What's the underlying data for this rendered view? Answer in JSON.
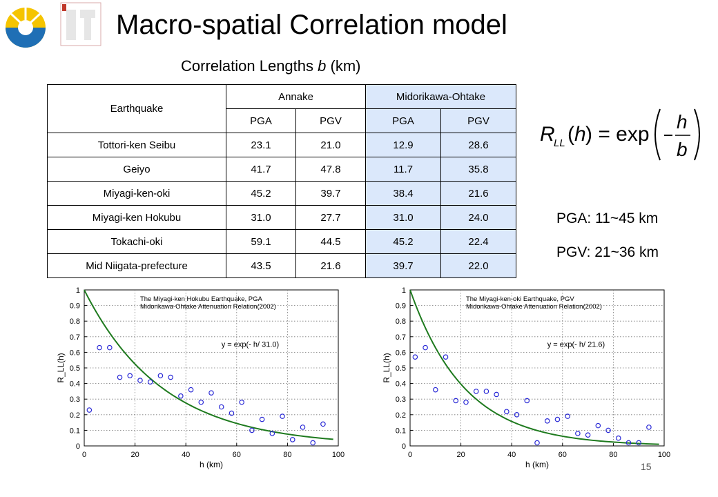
{
  "title": "Macro-spatial Correlation model",
  "table": {
    "caption_prefix": "Correlation Lengths ",
    "caption_var": "b",
    "caption_suffix": " (km)",
    "header_earthquake": "Earthquake",
    "header_group1": "Annake",
    "header_group2": "Midorikawa-Ohtake",
    "sub_headers": [
      "PGA",
      "PGV",
      "PGA",
      "PGV"
    ],
    "rows": [
      {
        "name": "Tottori-ken Seibu",
        "values": [
          "23.1",
          "21.0",
          "12.9",
          "28.6"
        ]
      },
      {
        "name": "Geiyo",
        "values": [
          "41.7",
          "47.8",
          "11.7",
          "35.8"
        ]
      },
      {
        "name": "Miyagi-ken-oki",
        "values": [
          "45.2",
          "39.7",
          "38.4",
          "21.6"
        ]
      },
      {
        "name": "Miyagi-ken Hokubu",
        "values": [
          "31.0",
          "27.7",
          "31.0",
          "24.0"
        ]
      },
      {
        "name": "Tokachi-oki",
        "values": [
          "59.1",
          "44.5",
          "45.2",
          "22.4"
        ]
      },
      {
        "name": "Mid Niigata-prefecture",
        "values": [
          "43.5",
          "21.6",
          "39.7",
          "22.0"
        ]
      }
    ]
  },
  "ranges": {
    "pga": "PGA: 11~45 km",
    "pgv": "PGV: 21~36 km"
  },
  "page_number": "15",
  "colors": {
    "fit_line": "#1e7a1e",
    "markers": "#2a2ad6",
    "highlight_column": "#dbe8fb"
  },
  "chart_data": [
    {
      "type": "scatter",
      "title_line1": "The Miyagi-ken Hokubu Earthquake, PGA",
      "title_line2": "Midorikawa-Ohtake Attenuation Relation(2002)",
      "annotation": "y = exp(- h/ 31.0)",
      "xlabel": "h (km)",
      "ylabel": "R_LL(h)",
      "xlim": [
        0,
        100
      ],
      "ylim": [
        0,
        1
      ],
      "xticks": [
        0,
        20,
        40,
        60,
        80,
        100
      ],
      "yticks": [
        0,
        0.1,
        0.2,
        0.3,
        0.4,
        0.5,
        0.6,
        0.7,
        0.8,
        0.9,
        1
      ],
      "grid": true,
      "fit": {
        "b": 31.0
      },
      "points": [
        {
          "x": 2,
          "y": 0.23
        },
        {
          "x": 6,
          "y": 0.63
        },
        {
          "x": 10,
          "y": 0.63
        },
        {
          "x": 14,
          "y": 0.44
        },
        {
          "x": 18,
          "y": 0.45
        },
        {
          "x": 22,
          "y": 0.42
        },
        {
          "x": 26,
          "y": 0.41
        },
        {
          "x": 30,
          "y": 0.45
        },
        {
          "x": 34,
          "y": 0.44
        },
        {
          "x": 38,
          "y": 0.32
        },
        {
          "x": 42,
          "y": 0.36
        },
        {
          "x": 46,
          "y": 0.28
        },
        {
          "x": 50,
          "y": 0.34
        },
        {
          "x": 54,
          "y": 0.25
        },
        {
          "x": 58,
          "y": 0.21
        },
        {
          "x": 62,
          "y": 0.28
        },
        {
          "x": 66,
          "y": 0.1
        },
        {
          "x": 70,
          "y": 0.17
        },
        {
          "x": 74,
          "y": 0.08
        },
        {
          "x": 78,
          "y": 0.19
        },
        {
          "x": 82,
          "y": 0.04
        },
        {
          "x": 86,
          "y": 0.12
        },
        {
          "x": 90,
          "y": 0.02
        },
        {
          "x": 94,
          "y": 0.14
        }
      ]
    },
    {
      "type": "scatter",
      "title_line1": "The Miyagi-ken-oki Earthquake, PGV",
      "title_line2": "Midorikawa-Ohtake Attenuation Relation(2002)",
      "annotation": "y = exp(- h/ 21.6)",
      "xlabel": "h (km)",
      "ylabel": "R_LL(h)",
      "xlim": [
        0,
        100
      ],
      "ylim": [
        0,
        1
      ],
      "xticks": [
        0,
        20,
        40,
        60,
        80,
        100
      ],
      "yticks": [
        0,
        0.1,
        0.2,
        0.3,
        0.4,
        0.5,
        0.6,
        0.7,
        0.8,
        0.9,
        1
      ],
      "grid": true,
      "fit": {
        "b": 21.6
      },
      "points": [
        {
          "x": 2,
          "y": 0.57
        },
        {
          "x": 6,
          "y": 0.63
        },
        {
          "x": 10,
          "y": 0.36
        },
        {
          "x": 14,
          "y": 0.57
        },
        {
          "x": 18,
          "y": 0.29
        },
        {
          "x": 22,
          "y": 0.28
        },
        {
          "x": 26,
          "y": 0.35
        },
        {
          "x": 30,
          "y": 0.35
        },
        {
          "x": 34,
          "y": 0.33
        },
        {
          "x": 38,
          "y": 0.22
        },
        {
          "x": 42,
          "y": 0.2
        },
        {
          "x": 46,
          "y": 0.29
        },
        {
          "x": 50,
          "y": 0.02
        },
        {
          "x": 54,
          "y": 0.16
        },
        {
          "x": 58,
          "y": 0.17
        },
        {
          "x": 62,
          "y": 0.19
        },
        {
          "x": 66,
          "y": 0.08
        },
        {
          "x": 70,
          "y": 0.07
        },
        {
          "x": 74,
          "y": 0.13
        },
        {
          "x": 78,
          "y": 0.1
        },
        {
          "x": 82,
          "y": 0.05
        },
        {
          "x": 86,
          "y": 0.02
        },
        {
          "x": 90,
          "y": 0.02
        },
        {
          "x": 94,
          "y": 0.12
        }
      ]
    }
  ]
}
